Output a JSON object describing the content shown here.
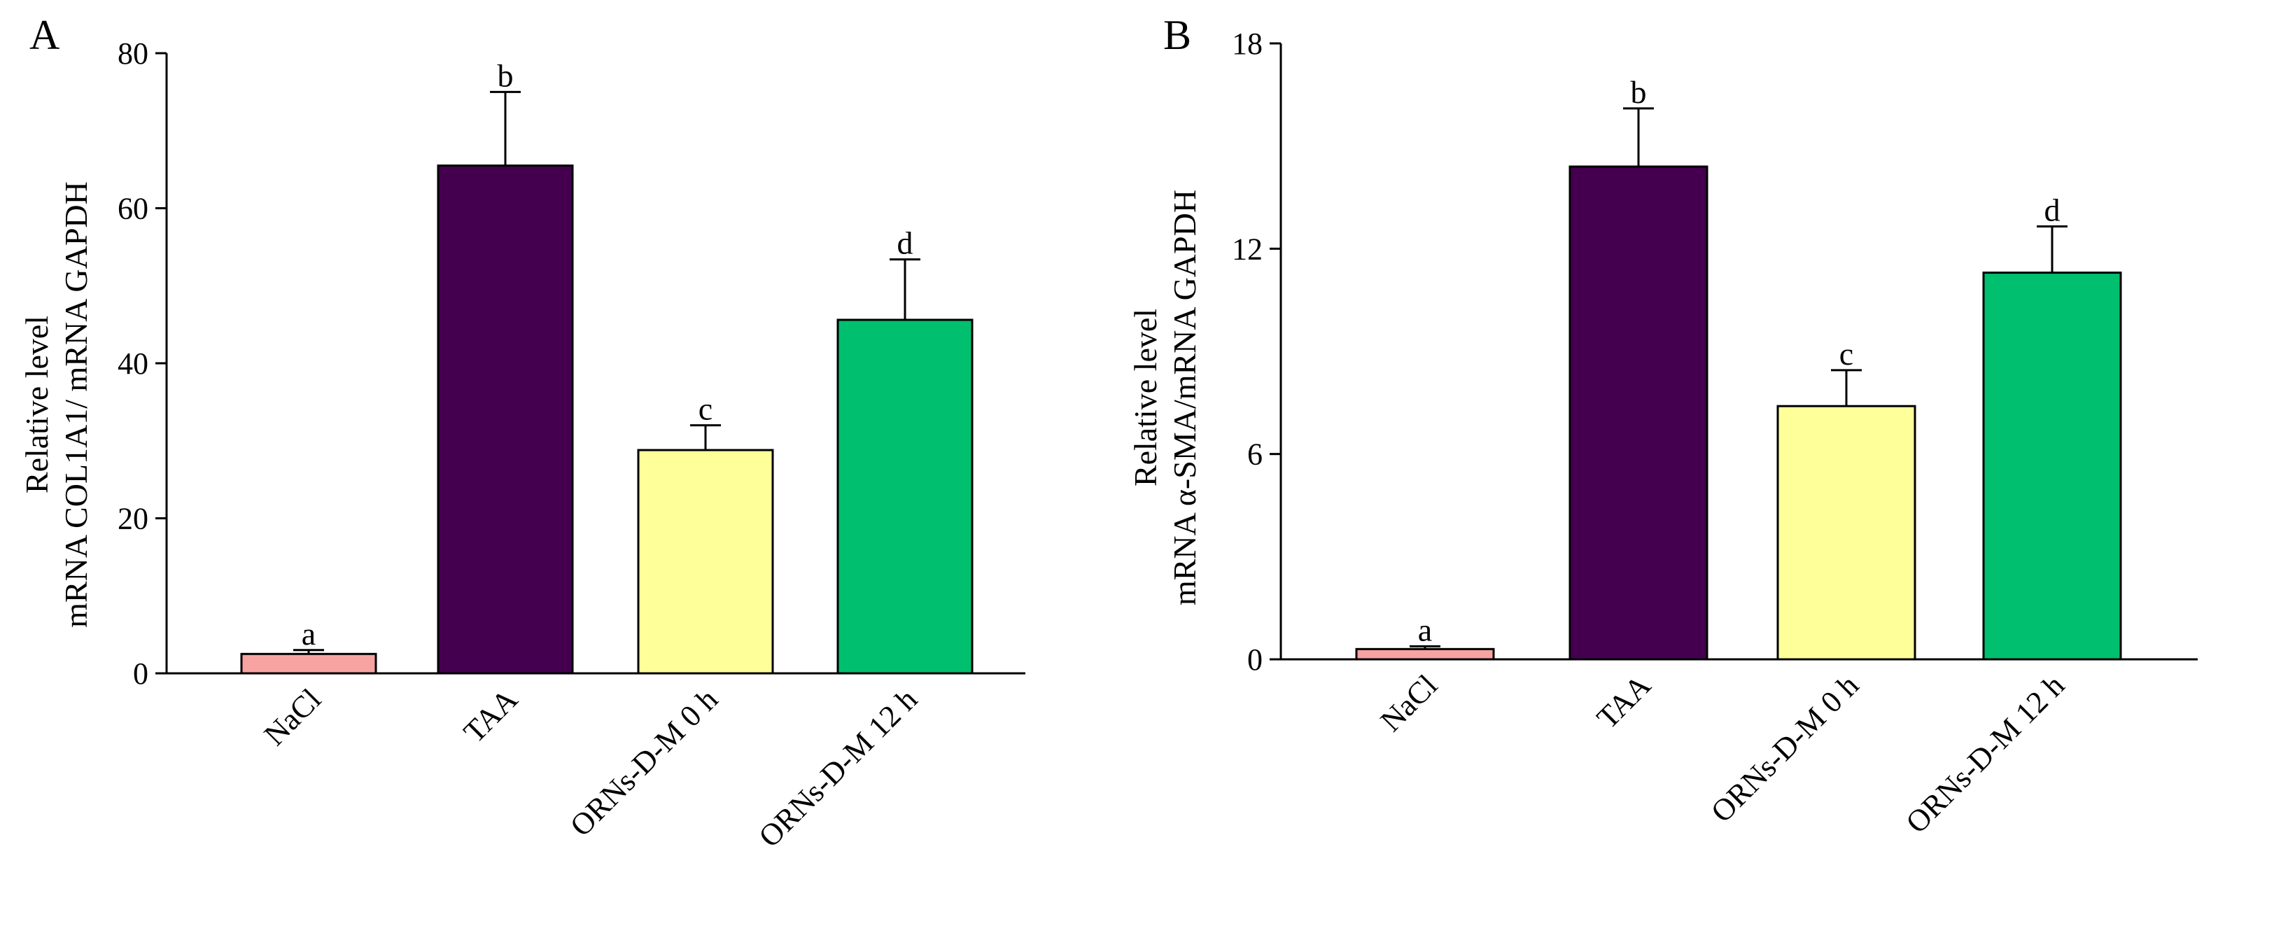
{
  "chart_data": [
    {
      "type": "bar",
      "panel_label": "A",
      "categories": [
        "NaCl",
        "TAA",
        "ORNs-D-M 0 h",
        "ORNs-D-M 12 h"
      ],
      "values": [
        2.5,
        65.5,
        28.8,
        45.6
      ],
      "errors": [
        0.5,
        9.5,
        3.2,
        7.8
      ],
      "significance": [
        "a",
        "b",
        "c",
        "d"
      ],
      "colors": [
        "#f7a3a1",
        "#44004f",
        "#ffff99",
        "#00bf6f"
      ],
      "ylabel_lines": [
        "Relative level",
        "mRNA COL1A1/ mRNA GAPDH"
      ],
      "ylim": [
        0,
        80
      ],
      "yticks": [
        "0",
        "20",
        "40",
        "60",
        "80"
      ],
      "ytick_values": [
        0,
        20,
        40,
        60,
        80
      ],
      "grid": false
    },
    {
      "type": "bar",
      "panel_label": "B",
      "categories": [
        "NaCl",
        "TAA",
        "ORNs-D-M 0 h",
        "ORNs-D-M 12 h"
      ],
      "values": [
        0.3,
        14.4,
        7.4,
        11.3
      ],
      "errors": [
        0.08,
        1.7,
        1.05,
        1.35
      ],
      "significance": [
        "a",
        "b",
        "c",
        "d"
      ],
      "colors": [
        "#f7a3a1",
        "#44004f",
        "#ffff99",
        "#00bf6f"
      ],
      "ylabel_lines": [
        "Relative level",
        "mRNA α-SMA/mRNA GAPDH"
      ],
      "ylim": [
        0,
        18
      ],
      "yticks": [
        "0",
        "6",
        "12",
        "18"
      ],
      "ytick_values": [
        0,
        6,
        12,
        18
      ],
      "grid": false
    }
  ]
}
